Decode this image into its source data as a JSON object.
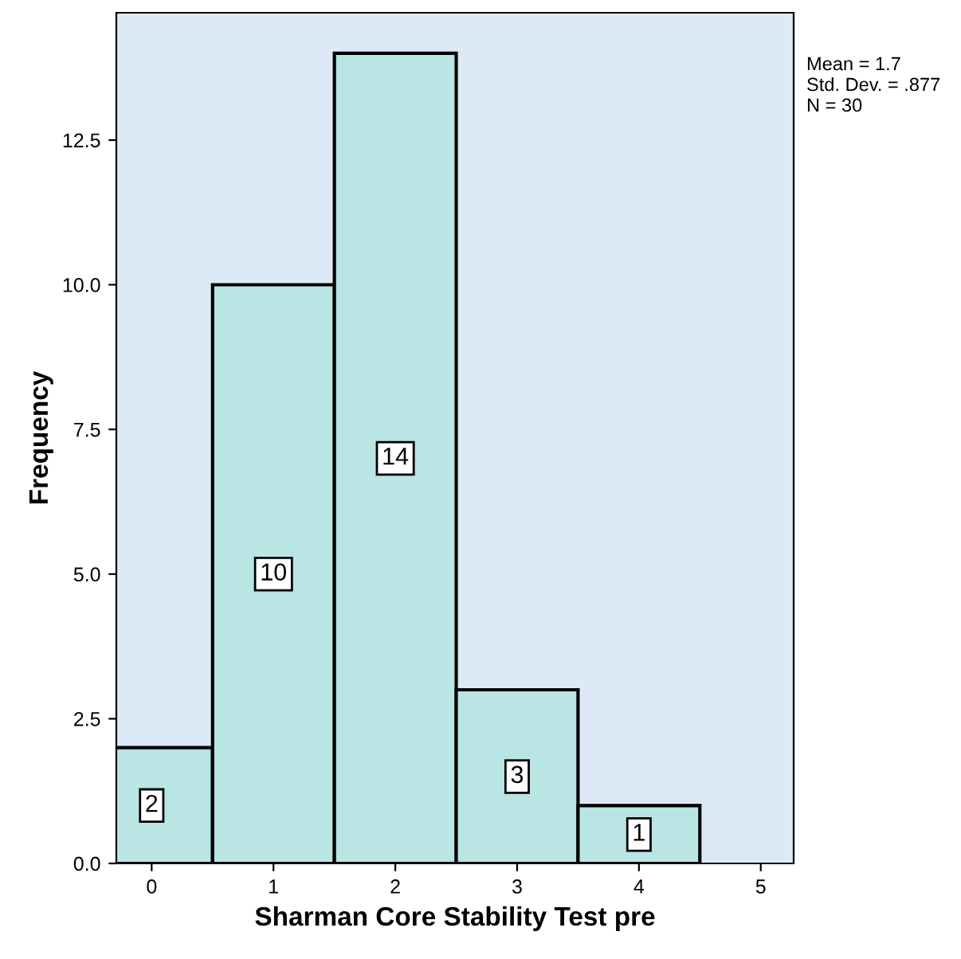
{
  "chart_data": {
    "type": "histogram",
    "xlabel": "Sharman Core Stability Test pre",
    "ylabel": "Frequency",
    "bins": [
      -0.5,
      0.5,
      1.5,
      2.5,
      3.5,
      4.5
    ],
    "values": [
      2,
      10,
      14,
      3,
      1
    ],
    "color": "#b9e5e5",
    "data_labels": true,
    "xlim": [
      -0.29,
      5.27
    ],
    "xticks": [
      0,
      1,
      2,
      3,
      4,
      5
    ],
    "ylim": [
      0,
      14.7
    ],
    "yticks": [
      {
        "value": 0,
        "label": "0.0"
      },
      {
        "value": 2.5,
        "label": "2.5"
      },
      {
        "value": 5,
        "label": "5.0"
      },
      {
        "value": 7.5,
        "label": "7.5"
      },
      {
        "value": 10,
        "label": "10.0"
      },
      {
        "value": 12.5,
        "label": "12.5"
      }
    ],
    "grid": false,
    "legend": false,
    "annotations": [
      "Mean = 1.7",
      "Std. Dev. = .877",
      "N = 30"
    ]
  }
}
